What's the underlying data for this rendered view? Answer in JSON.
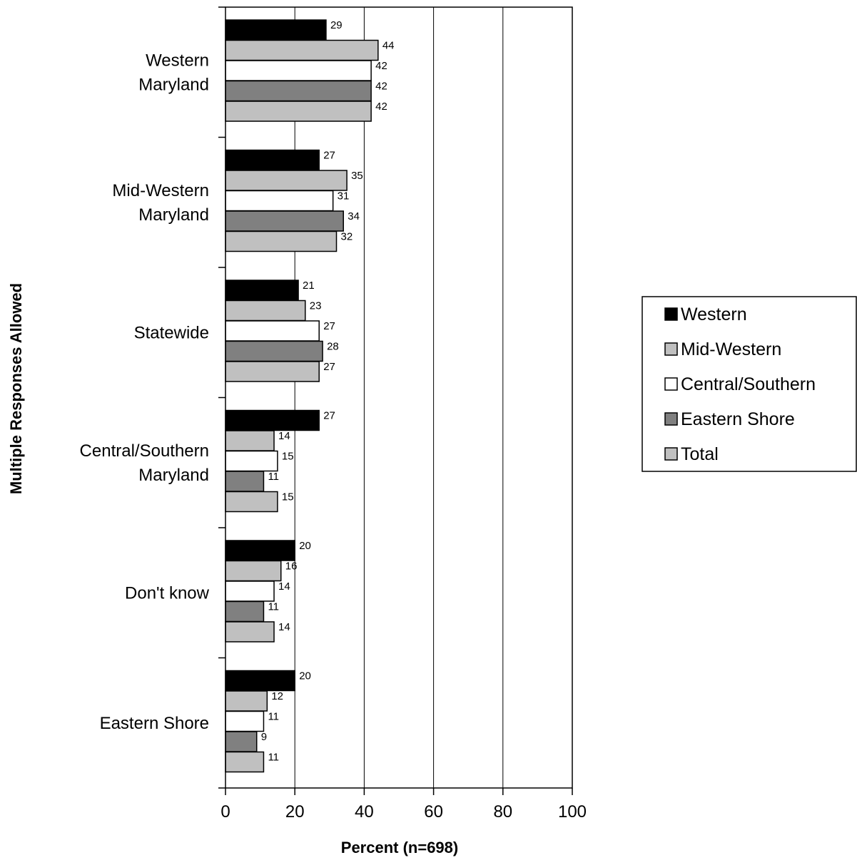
{
  "chart_data": {
    "type": "bar",
    "orientation": "horizontal",
    "categories": [
      [
        "Western",
        "Maryland"
      ],
      [
        "Mid-Western",
        "Maryland"
      ],
      [
        "Statewide"
      ],
      [
        "Central/Southern",
        "Maryland"
      ],
      [
        "Don't know"
      ],
      [
        "Eastern Shore"
      ]
    ],
    "series": [
      {
        "name": "Western",
        "color": "#000000",
        "values": [
          29,
          27,
          21,
          27,
          20,
          20
        ]
      },
      {
        "name": "Mid-Western",
        "color": "#c0c0c0",
        "values": [
          44,
          35,
          23,
          14,
          16,
          12
        ]
      },
      {
        "name": "Central/Southern",
        "color": "#ffffff",
        "values": [
          42,
          31,
          27,
          15,
          14,
          11
        ]
      },
      {
        "name": "Eastern Shore",
        "color": "#808080",
        "values": [
          42,
          34,
          28,
          11,
          11,
          9
        ]
      },
      {
        "name": "Total",
        "color": "#c0c0c0",
        "values": [
          42,
          32,
          27,
          15,
          14,
          11
        ]
      }
    ],
    "xlabel": "Percent (n=698)",
    "ylabel": "Multiple Responses Allowed",
    "xlim": [
      0,
      100
    ],
    "xticks": [
      "0",
      "20",
      "40",
      "60",
      "80",
      "100"
    ],
    "grid": "vertical",
    "legend": "right"
  }
}
